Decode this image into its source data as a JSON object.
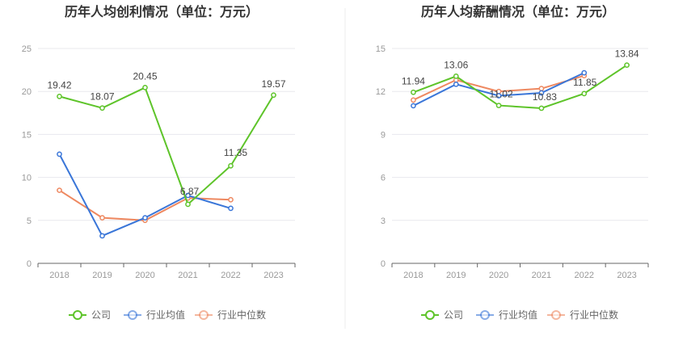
{
  "chart_data": [
    {
      "type": "line",
      "title": "历年人均创利情况（单位：万元）",
      "categories": [
        "2018",
        "2019",
        "2020",
        "2021",
        "2022",
        "2023"
      ],
      "ylim": [
        0,
        25
      ],
      "yticks": [
        0,
        5,
        10,
        15,
        20,
        25
      ],
      "grid": true,
      "legend_position": "bottom",
      "series": [
        {
          "name": "公司",
          "color": "#5ec42a",
          "values": [
            19.42,
            18.07,
            20.45,
            6.87,
            11.35,
            19.57
          ],
          "labels": [
            "19.42",
            "18.07",
            "20.45",
            "6.87",
            "11.35",
            "19.57"
          ]
        },
        {
          "name": "行业均值",
          "color": "#3a76d8",
          "values": [
            12.7,
            3.2,
            5.3,
            7.9,
            6.4,
            null
          ]
        },
        {
          "name": "行业中位数",
          "color": "#ee8860",
          "values": [
            8.5,
            5.3,
            5.0,
            7.6,
            7.4,
            null
          ]
        }
      ]
    },
    {
      "type": "line",
      "title": "历年人均薪酬情况（单位：万元）",
      "categories": [
        "2018",
        "2019",
        "2020",
        "2021",
        "2022",
        "2023"
      ],
      "ylim": [
        0,
        15
      ],
      "yticks": [
        0,
        3,
        6,
        9,
        12,
        15
      ],
      "grid": true,
      "legend_position": "bottom",
      "series": [
        {
          "name": "公司",
          "color": "#5ec42a",
          "values": [
            11.94,
            13.06,
            11.02,
            10.83,
            11.85,
            13.84
          ],
          "labels": [
            "11.94",
            "13.06",
            "11.02",
            "10.83",
            "11.85",
            "13.84"
          ]
        },
        {
          "name": "行业均值",
          "color": "#3a76d8",
          "values": [
            11.0,
            12.5,
            11.7,
            11.9,
            13.3,
            null
          ]
        },
        {
          "name": "行业中位数",
          "color": "#ee8860",
          "values": [
            11.4,
            12.8,
            12.0,
            12.2,
            13.1,
            null
          ]
        }
      ]
    }
  ]
}
